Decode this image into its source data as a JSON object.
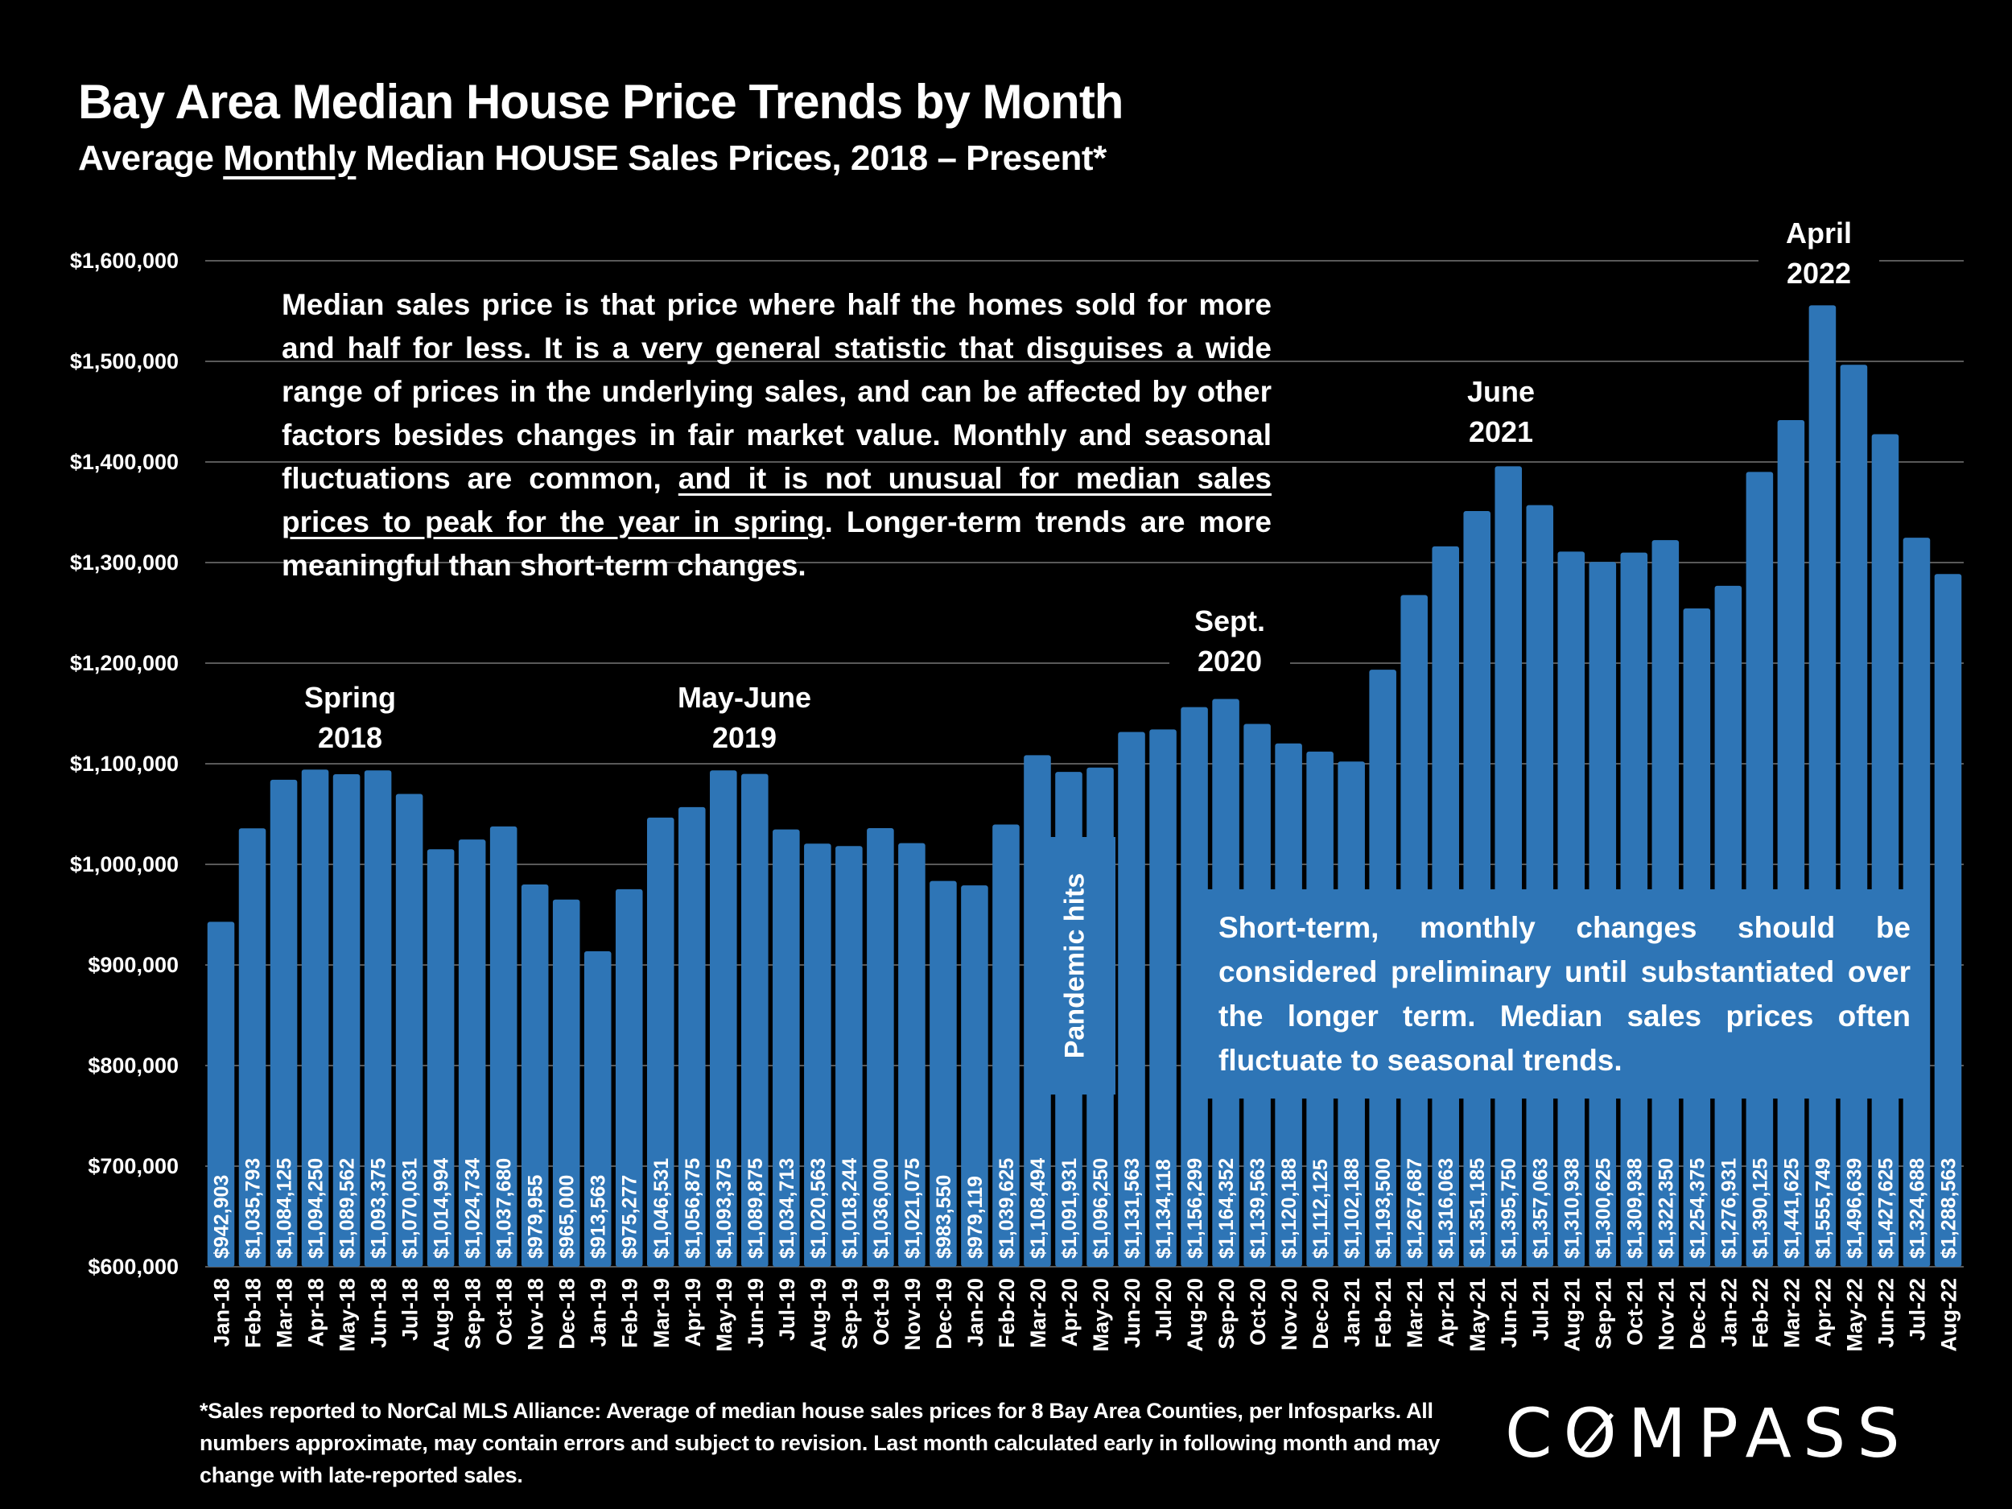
{
  "header": {
    "title": "Bay Area Median House Price Trends by Month",
    "subtitle_pre": "Average ",
    "subtitle_underlined": "Monthly",
    "subtitle_post": " Median HOUSE Sales Prices, 2018 – Present*"
  },
  "notes": {
    "top_pre": "Median sales price is that price where half the homes sold for more and half for less. It is a very general statistic that disguises a wide range of prices in the underlying sales, and can be affected by other factors besides changes in fair market value. Monthly and seasonal fluctuations are common, ",
    "top_underlined": "and it is not unusual for median sales prices to peak for the year in spring",
    "top_post": ". Longer-term trends are more meaningful than short-term changes.",
    "bottom": "Short-term, monthly changes should be considered preliminary until substantiated over the longer term. Median sales prices often fluctuate to seasonal trends.",
    "pandemic": "Pandemic hits"
  },
  "annotations": [
    {
      "line1": "Spring",
      "line2": "2018"
    },
    {
      "line1": "May-June",
      "line2": "2019"
    },
    {
      "line1": "Sept.",
      "line2": "2020"
    },
    {
      "line1": "June",
      "line2": "2021"
    },
    {
      "line1": "April",
      "line2": "2022"
    }
  ],
  "footer": {
    "footnote": "*Sales reported to NorCal MLS Alliance: Average of median house sales prices for 8 Bay Area Counties, per Infosparks. All numbers approximate, may contain errors and subject to revision. Last month calculated early in following month and may change with late-reported sales.",
    "logo_pre": "C",
    "logo_o": "O",
    "logo_post": "MPASS"
  },
  "colors": {
    "bar": "#2e75b6",
    "background": "#000000",
    "gridline": "#595959",
    "text": "#ffffff"
  },
  "chart_data": {
    "type": "bar",
    "title": "Bay Area Median House Price Trends by Month",
    "subtitle": "Average Monthly Median HOUSE Sales Prices, 2018 – Present*",
    "xlabel": "",
    "ylabel": "",
    "ylim": [
      600000,
      1600000
    ],
    "yticks": [
      600000,
      700000,
      800000,
      900000,
      1000000,
      1100000,
      1200000,
      1300000,
      1400000,
      1500000,
      1600000
    ],
    "ytick_labels": [
      "$600,000",
      "$700,000",
      "$800,000",
      "$900,000",
      "$1,000,000",
      "$1,100,000",
      "$1,200,000",
      "$1,300,000",
      "$1,400,000",
      "$1,500,000",
      "$1,600,000"
    ],
    "grid": true,
    "categories": [
      "Jan-18",
      "Feb-18",
      "Mar-18",
      "Apr-18",
      "May-18",
      "Jun-18",
      "Jul-18",
      "Aug-18",
      "Sep-18",
      "Oct-18",
      "Nov-18",
      "Dec-18",
      "Jan-19",
      "Feb-19",
      "Mar-19",
      "Apr-19",
      "May-19",
      "Jun-19",
      "Jul-19",
      "Aug-19",
      "Sep-19",
      "Oct-19",
      "Nov-19",
      "Dec-19",
      "Jan-20",
      "Feb-20",
      "Mar-20",
      "Apr-20",
      "May-20",
      "Jun-20",
      "Jul-20",
      "Aug-20",
      "Sep-20",
      "Oct-20",
      "Nov-20",
      "Dec-20",
      "Jan-21",
      "Feb-21",
      "Mar-21",
      "Apr-21",
      "May-21",
      "Jun-21",
      "Jul-21",
      "Aug-21",
      "Sep-21",
      "Oct-21",
      "Nov-21",
      "Dec-21",
      "Jan-22",
      "Feb-22",
      "Mar-22",
      "Apr-22",
      "May-22",
      "Jun-22",
      "Jul-22",
      "Aug-22"
    ],
    "values": [
      942903,
      1035793,
      1084125,
      1094250,
      1089562,
      1093375,
      1070031,
      1014994,
      1024734,
      1037680,
      979955,
      965000,
      913563,
      975277,
      1046531,
      1056875,
      1093375,
      1089875,
      1034713,
      1020563,
      1018244,
      1036000,
      1021075,
      983550,
      979119,
      1039625,
      1108494,
      1091931,
      1096250,
      1131563,
      1134118,
      1156299,
      1164352,
      1139563,
      1120188,
      1112125,
      1102188,
      1193500,
      1267687,
      1316063,
      1351185,
      1395750,
      1357063,
      1310938,
      1300625,
      1309938,
      1322350,
      1254375,
      1276931,
      1390125,
      1441625,
      1555749,
      1496639,
      1427625,
      1324688,
      1288563
    ],
    "value_labels": [
      "$942,903",
      "$1,035,793",
      "$1,084,125",
      "$1,094,250",
      "$1,089,562",
      "$1,093,375",
      "$1,070,031",
      "$1,014,994",
      "$1,024,734",
      "$1,037,680",
      "$979,955",
      "$965,000",
      "$913,563",
      "$975,277",
      "$1,046,531",
      "$1,056,875",
      "$1,093,375",
      "$1,089,875",
      "$1,034,713",
      "$1,020,563",
      "$1,018,244",
      "$1,036,000",
      "$1,021,075",
      "$983,550",
      "$979,119",
      "$1,039,625",
      "$1,108,494",
      "$1,091,931",
      "$1,096,250",
      "$1,131,563",
      "$1,134,118",
      "$1,156,299",
      "$1,164,352",
      "$1,139,563",
      "$1,120,188",
      "$1,112,125",
      "$1,102,188",
      "$1,193,500",
      "$1,267,687",
      "$1,316,063",
      "$1,351,185",
      "$1,395,750",
      "$1,357,063",
      "$1,310,938",
      "$1,300,625",
      "$1,309,938",
      "$1,322,350",
      "$1,254,375",
      "$1,276,931",
      "$1,390,125",
      "$1,441,625",
      "$1,555,749",
      "$1,496,639",
      "$1,427,625",
      "$1,324,688",
      "$1,288,563"
    ],
    "legend": "none"
  }
}
